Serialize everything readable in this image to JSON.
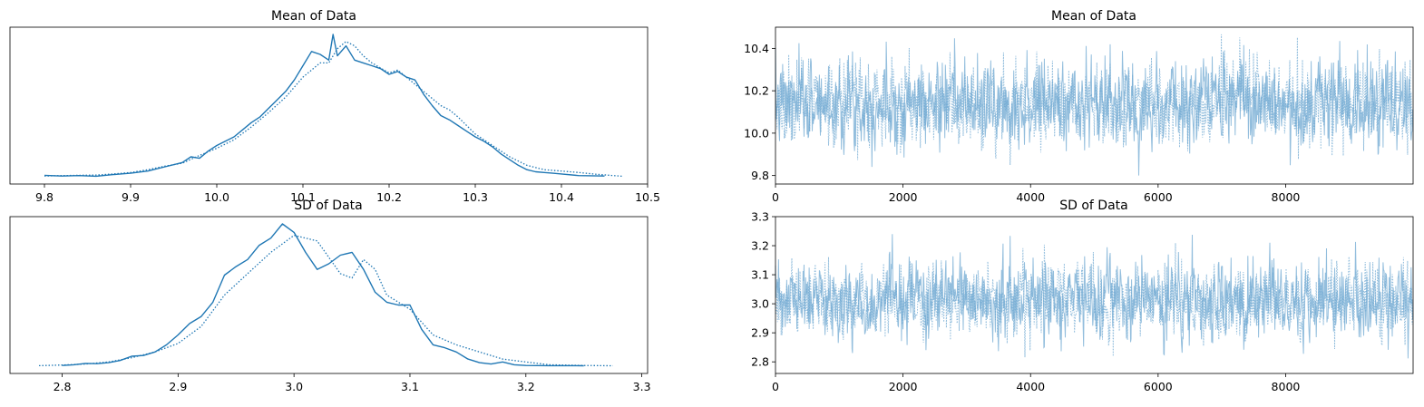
{
  "colors": {
    "series": "#1f77b4",
    "trace": "#6fa8d2"
  },
  "chart_data": [
    {
      "type": "line",
      "title": "Mean of Data",
      "xlabel": "",
      "ylabel": "",
      "xlim": [
        9.76,
        10.5
      ],
      "xticks": [
        9.8,
        9.9,
        10.0,
        10.1,
        10.2,
        10.3,
        10.4,
        10.5
      ],
      "xtick_labels": [
        "9.8",
        "9.9",
        "10.0",
        "10.1",
        "10.2",
        "10.3",
        "10.4",
        "10.5"
      ],
      "yticks_visible": false,
      "series": [
        {
          "style": "solid",
          "x": [
            9.8,
            9.82,
            9.84,
            9.86,
            9.88,
            9.9,
            9.92,
            9.94,
            9.96,
            9.97,
            9.98,
            9.99,
            10.0,
            10.01,
            10.02,
            10.03,
            10.04,
            10.05,
            10.06,
            10.07,
            10.08,
            10.09,
            10.1,
            10.11,
            10.12,
            10.13,
            10.135,
            10.14,
            10.15,
            10.16,
            10.17,
            10.18,
            10.19,
            10.2,
            10.21,
            10.22,
            10.23,
            10.24,
            10.25,
            10.26,
            10.27,
            10.28,
            10.29,
            10.3,
            10.31,
            10.32,
            10.33,
            10.34,
            10.35,
            10.36,
            10.37,
            10.38,
            10.39,
            10.4,
            10.42,
            10.45
          ],
          "y": [
            0.01,
            0.005,
            0.008,
            0.004,
            0.015,
            0.025,
            0.04,
            0.07,
            0.1,
            0.14,
            0.13,
            0.18,
            0.22,
            0.25,
            0.28,
            0.33,
            0.38,
            0.42,
            0.48,
            0.54,
            0.6,
            0.68,
            0.78,
            0.88,
            0.86,
            0.82,
            1.0,
            0.85,
            0.92,
            0.82,
            0.8,
            0.78,
            0.76,
            0.72,
            0.74,
            0.7,
            0.68,
            0.58,
            0.5,
            0.43,
            0.4,
            0.36,
            0.32,
            0.28,
            0.25,
            0.21,
            0.16,
            0.12,
            0.08,
            0.05,
            0.035,
            0.03,
            0.025,
            0.02,
            0.008,
            0.005
          ]
        },
        {
          "style": "dotted",
          "x": [
            9.8,
            9.82,
            9.84,
            9.86,
            9.88,
            9.9,
            9.92,
            9.94,
            9.96,
            9.98,
            10.0,
            10.02,
            10.04,
            10.06,
            10.08,
            10.1,
            10.12,
            10.13,
            10.14,
            10.15,
            10.16,
            10.17,
            10.18,
            10.2,
            10.21,
            10.22,
            10.24,
            10.26,
            10.27,
            10.28,
            10.3,
            10.32,
            10.34,
            10.36,
            10.38,
            10.4,
            10.42,
            10.44,
            10.47
          ],
          "y": [
            0.005,
            0.008,
            0.01,
            0.012,
            0.02,
            0.03,
            0.05,
            0.075,
            0.095,
            0.15,
            0.2,
            0.26,
            0.35,
            0.45,
            0.56,
            0.7,
            0.8,
            0.8,
            0.9,
            0.95,
            0.92,
            0.85,
            0.8,
            0.73,
            0.75,
            0.7,
            0.6,
            0.5,
            0.47,
            0.42,
            0.3,
            0.22,
            0.14,
            0.08,
            0.05,
            0.04,
            0.03,
            0.018,
            0.004
          ]
        }
      ]
    },
    {
      "type": "line",
      "title": "Mean of Data",
      "xlabel": "",
      "ylabel": "",
      "xlim": [
        0,
        9999
      ],
      "ylim": [
        9.76,
        10.5
      ],
      "xticks": [
        0,
        2000,
        4000,
        6000,
        8000
      ],
      "xtick_labels": [
        "0",
        "2000",
        "4000",
        "6000",
        "8000"
      ],
      "yticks": [
        9.8,
        10.0,
        10.2,
        10.4
      ],
      "ytick_labels": [
        "9.8",
        "10.0",
        "10.2",
        "10.4"
      ],
      "trace": {
        "n": 10000,
        "chains": 2,
        "center": 10.14,
        "sd": 0.1,
        "min": 9.8,
        "max": 10.47
      }
    },
    {
      "type": "line",
      "title": "SD of Data",
      "xlabel": "",
      "ylabel": "",
      "xlim": [
        2.755,
        3.305
      ],
      "xticks": [
        2.8,
        2.9,
        3.0,
        3.1,
        3.2,
        3.3
      ],
      "xtick_labels": [
        "2.8",
        "2.9",
        "3.0",
        "3.1",
        "3.2",
        "3.3"
      ],
      "yticks_visible": false,
      "series": [
        {
          "style": "solid",
          "x": [
            2.8,
            2.81,
            2.82,
            2.83,
            2.84,
            2.85,
            2.86,
            2.87,
            2.88,
            2.89,
            2.9,
            2.91,
            2.92,
            2.93,
            2.94,
            2.95,
            2.96,
            2.97,
            2.98,
            2.99,
            3.0,
            3.01,
            3.02,
            3.03,
            3.04,
            3.05,
            3.06,
            3.07,
            3.08,
            3.09,
            3.1,
            3.11,
            3.12,
            3.13,
            3.14,
            3.15,
            3.16,
            3.17,
            3.18,
            3.19,
            3.2,
            3.22,
            3.25
          ],
          "y": [
            0.005,
            0.01,
            0.02,
            0.018,
            0.025,
            0.04,
            0.07,
            0.075,
            0.1,
            0.15,
            0.22,
            0.3,
            0.35,
            0.45,
            0.64,
            0.7,
            0.75,
            0.85,
            0.9,
            1.0,
            0.94,
            0.8,
            0.68,
            0.72,
            0.78,
            0.8,
            0.68,
            0.52,
            0.45,
            0.43,
            0.43,
            0.26,
            0.15,
            0.13,
            0.1,
            0.05,
            0.025,
            0.015,
            0.03,
            0.01,
            0.005,
            0.004,
            0.003
          ]
        },
        {
          "style": "dotted",
          "x": [
            2.78,
            2.8,
            2.82,
            2.84,
            2.86,
            2.88,
            2.9,
            2.92,
            2.94,
            2.96,
            2.98,
            3.0,
            3.02,
            3.04,
            3.05,
            3.06,
            3.07,
            3.08,
            3.1,
            3.12,
            3.14,
            3.16,
            3.18,
            3.2,
            3.22,
            3.25,
            3.275
          ],
          "y": [
            0.004,
            0.008,
            0.015,
            0.03,
            0.06,
            0.1,
            0.16,
            0.28,
            0.5,
            0.65,
            0.8,
            0.92,
            0.88,
            0.65,
            0.62,
            0.75,
            0.68,
            0.5,
            0.4,
            0.22,
            0.15,
            0.1,
            0.05,
            0.03,
            0.01,
            0.005,
            0.003
          ]
        }
      ]
    },
    {
      "type": "line",
      "title": "SD of Data",
      "xlabel": "",
      "ylabel": "",
      "xlim": [
        0,
        9999
      ],
      "ylim": [
        2.76,
        3.3
      ],
      "xticks": [
        0,
        2000,
        4000,
        6000,
        8000
      ],
      "xtick_labels": [
        "0",
        "2000",
        "4000",
        "6000",
        "8000"
      ],
      "yticks": [
        2.8,
        2.9,
        3.0,
        3.1,
        3.2,
        3.3
      ],
      "ytick_labels": [
        "2.8",
        "2.9",
        "3.0",
        "3.1",
        "3.2",
        "3.3"
      ],
      "trace": {
        "n": 10000,
        "chains": 2,
        "center": 3.01,
        "sd": 0.065,
        "min": 2.78,
        "max": 3.27
      }
    }
  ]
}
